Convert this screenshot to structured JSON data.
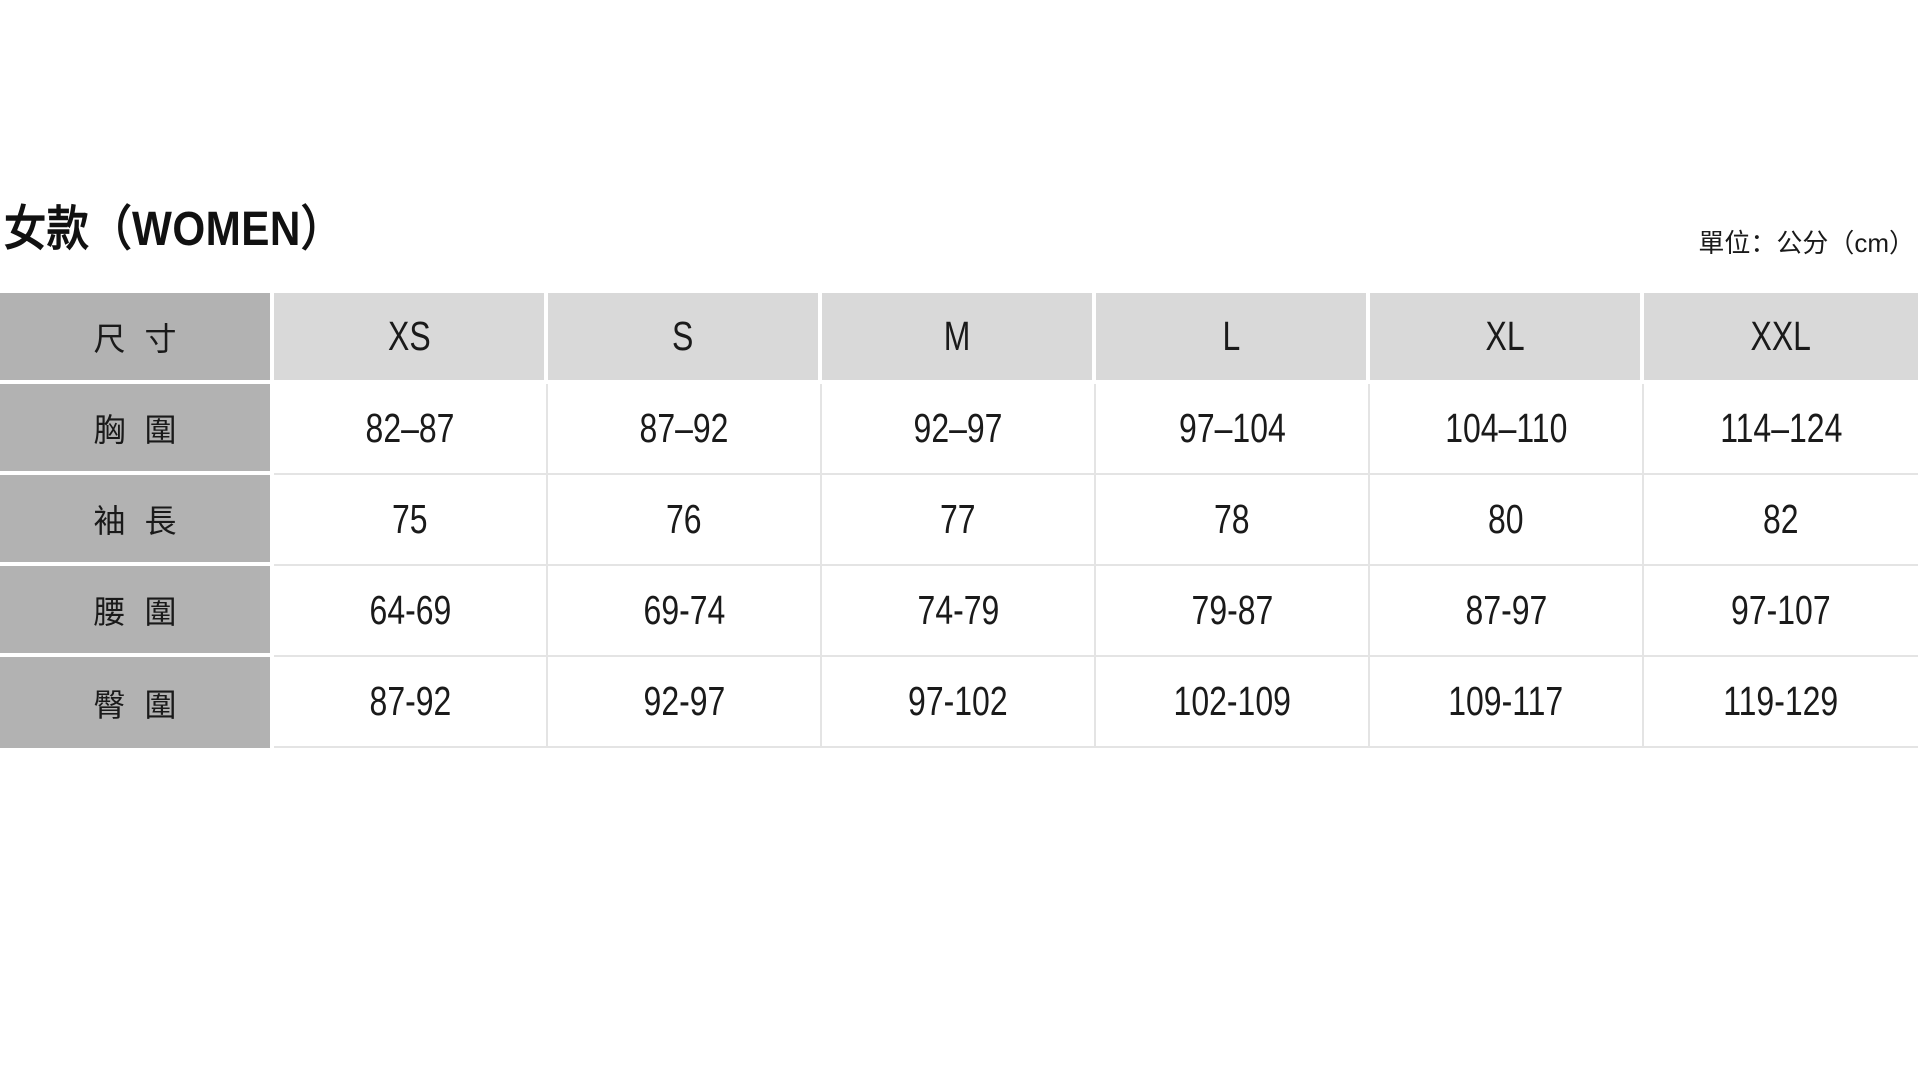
{
  "page": {
    "title": "女款（WOMEN）",
    "unit_label": "單位：公分（cm）"
  },
  "table": {
    "corner_label": "尺 寸",
    "size_headers": [
      "XS",
      "S",
      "M",
      "L",
      "XL",
      "XXL"
    ],
    "rows": [
      {
        "label": "胸 圍",
        "values": [
          "82–87",
          "87–92",
          "92–97",
          "97–104",
          "104–110",
          "114–124"
        ]
      },
      {
        "label": "袖 長",
        "values": [
          "75",
          "76",
          "77",
          "78",
          "80",
          "82"
        ]
      },
      {
        "label": "腰 圍",
        "values": [
          "64-69",
          "69-74",
          "74-79",
          "79-87",
          "87-97",
          "97-107"
        ]
      },
      {
        "label": "臀 圍",
        "values": [
          "87-92",
          "92-97",
          "97-102",
          "102-109",
          "109-117",
          "119-129"
        ]
      }
    ]
  },
  "colors": {
    "label_bg": "#b2b2b2",
    "header_bg": "#d9d9d9",
    "data_cell_bg": "#ffffff",
    "data_border": "#e4e4e4",
    "gap": "#ffffff",
    "text": "#1a1a1a"
  }
}
